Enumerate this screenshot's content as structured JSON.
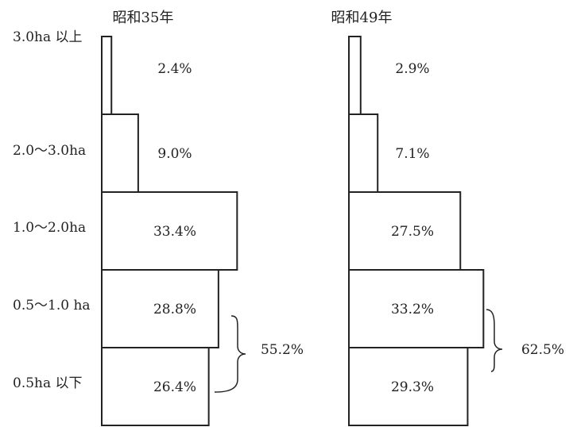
{
  "chart_data": {
    "type": "bar",
    "orientation": "horizontal-stacked-pyramid",
    "categories": [
      "3.0ha 以上",
      "2.0〜3.0ha",
      "1.0〜2.0ha",
      "0.5〜1.0 ha",
      "0.5ha 以下"
    ],
    "series": [
      {
        "name": "昭和35年",
        "values": [
          2.4,
          9.0,
          33.4,
          28.8,
          26.4
        ],
        "labels": [
          "2.4%",
          "9.0%",
          "33.4%",
          "28.8%",
          "26.4%"
        ]
      },
      {
        "name": "昭和49年",
        "values": [
          2.9,
          7.1,
          27.5,
          33.2,
          29.3
        ],
        "labels": [
          "2.9%",
          "7.1%",
          "27.5%",
          "33.2%",
          "29.3%"
        ]
      }
    ],
    "brace_totals": [
      "55.2%",
      "62.5%"
    ],
    "legend": "none",
    "grid": false
  }
}
